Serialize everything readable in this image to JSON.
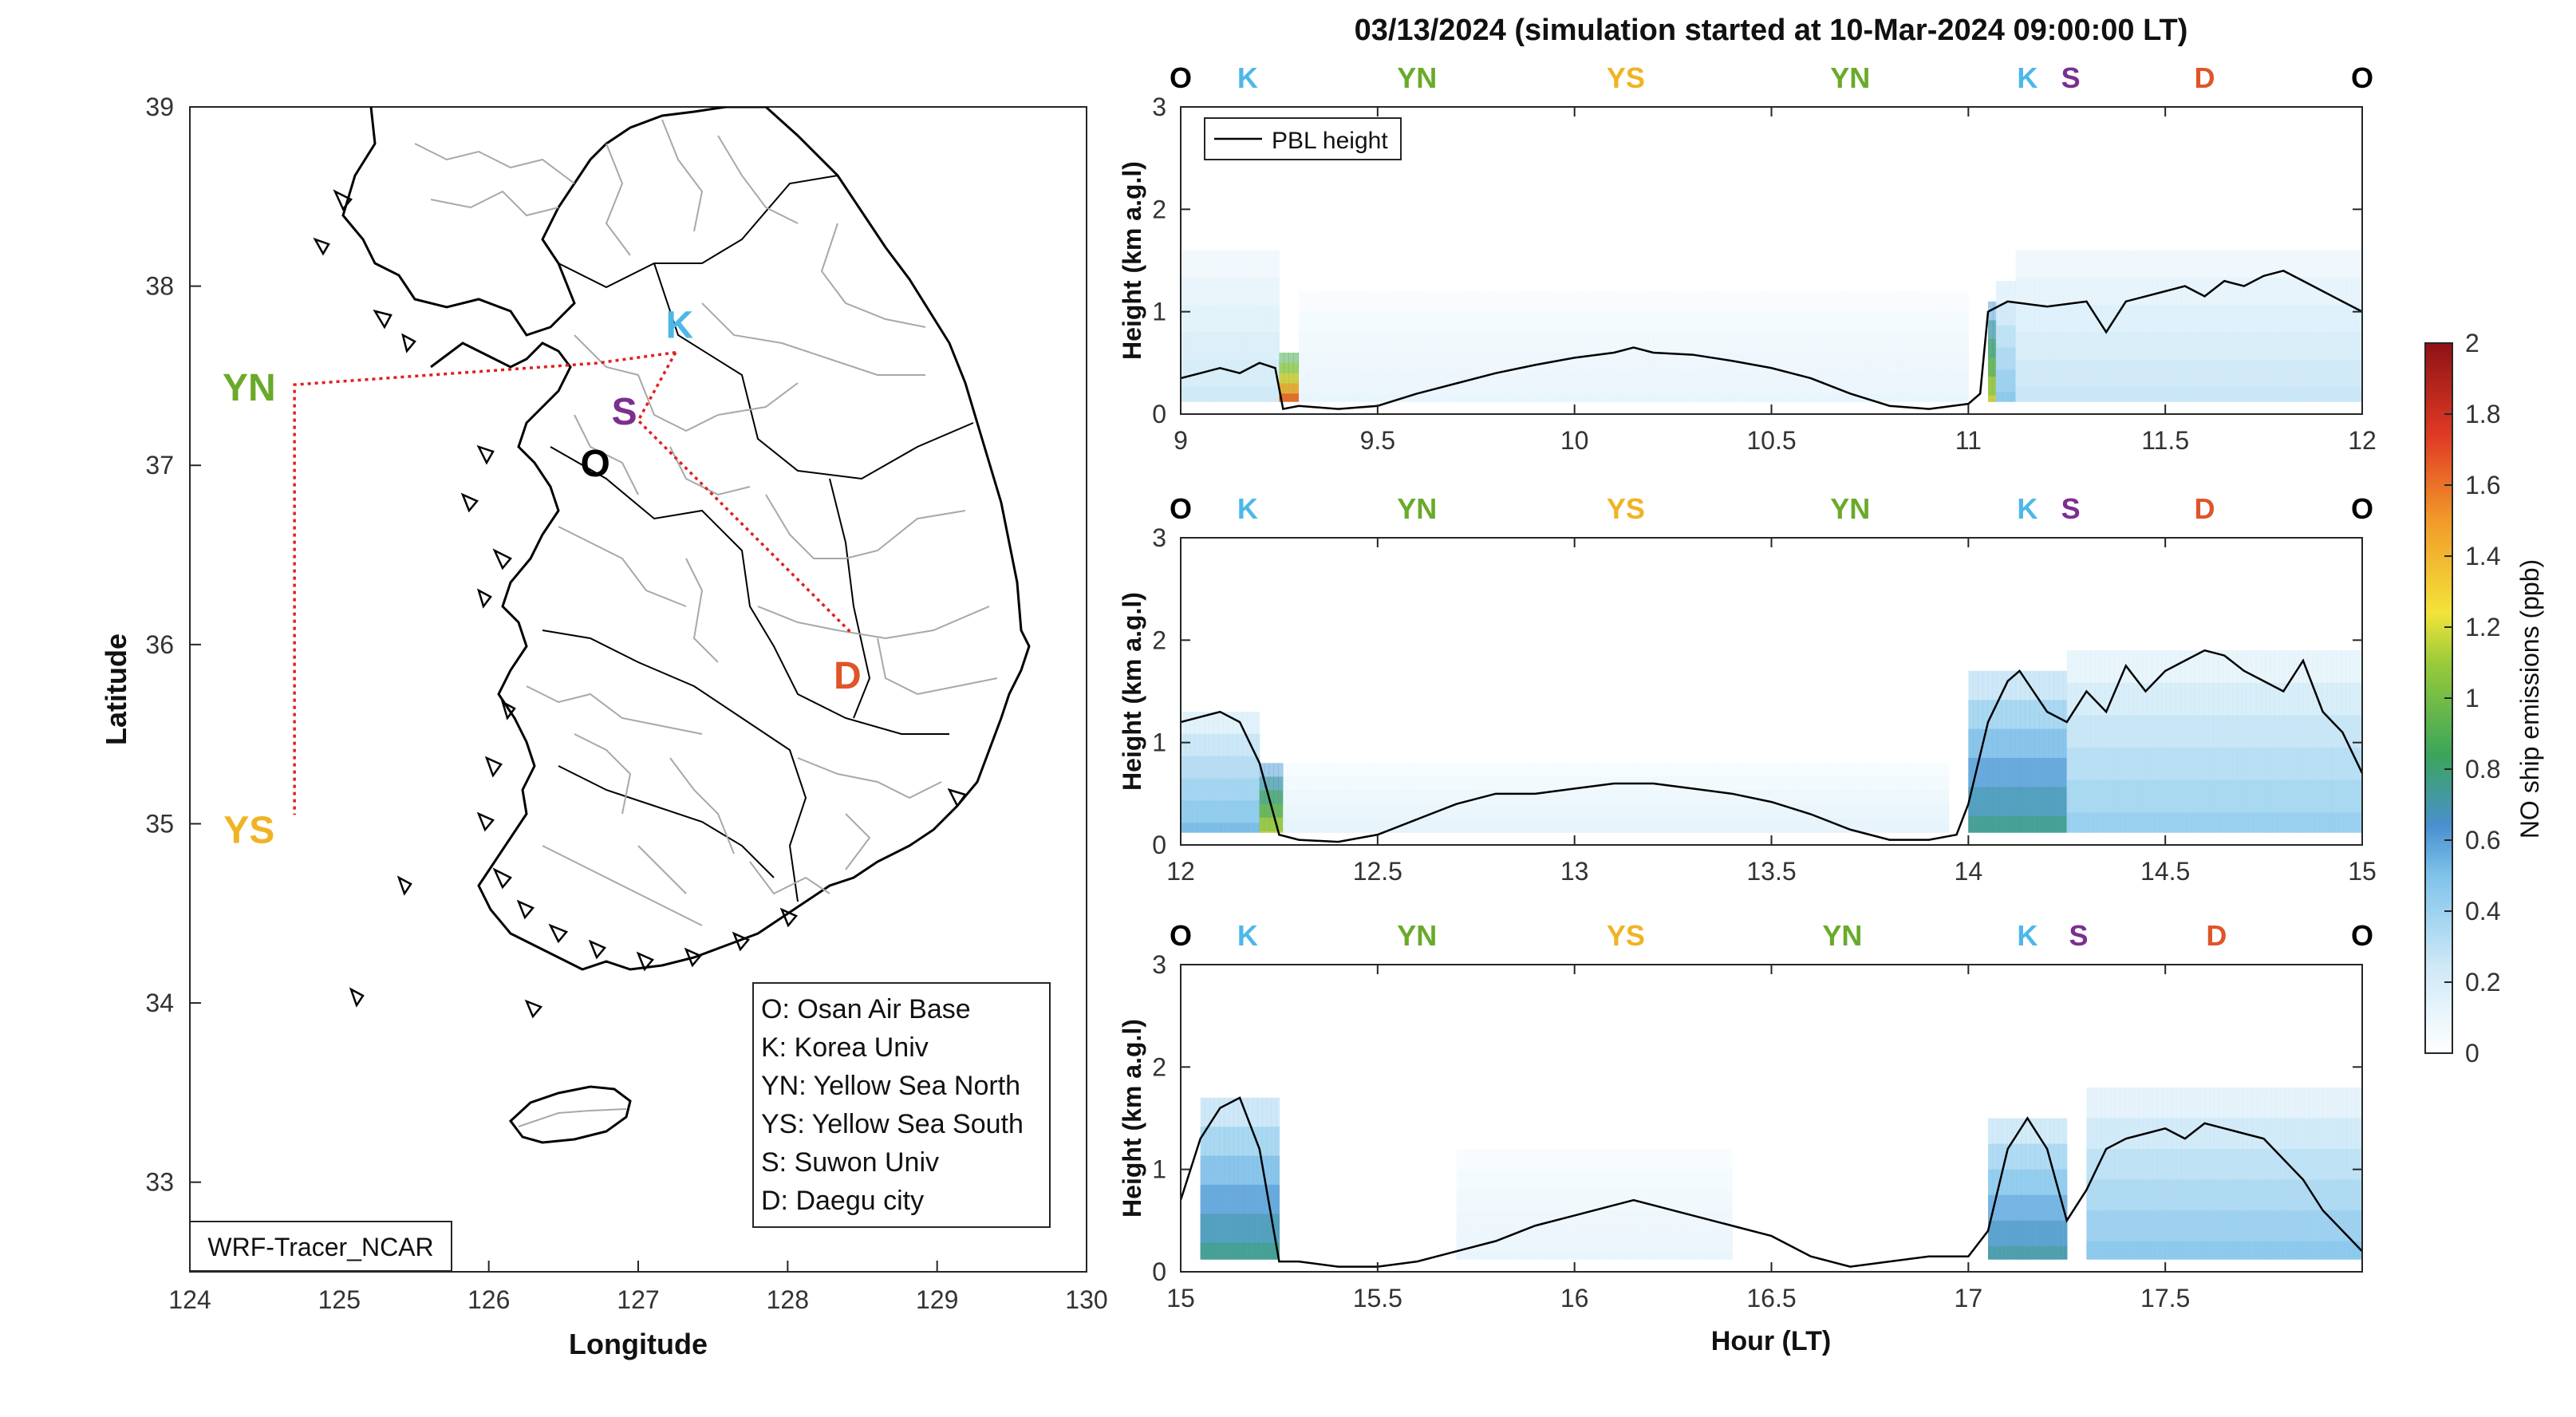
{
  "title": "03/13/2024 (simulation started at 10-Mar-2024 09:00:00 LT)",
  "map": {
    "xlabel": "Longitude",
    "ylabel": "Latitude",
    "xlim": [
      124,
      130
    ],
    "ylim": [
      32.5,
      39
    ],
    "xticks": [
      "124",
      "125",
      "126",
      "127",
      "128",
      "129",
      "130"
    ],
    "yticks": [
      "33",
      "34",
      "35",
      "36",
      "37",
      "38",
      "39"
    ],
    "model_label": "WRF-Tracer_NCAR",
    "sites": [
      {
        "code": "K",
        "lon": 127.17,
        "lat": 37.63,
        "color": "#4db8e8"
      },
      {
        "code": "S",
        "lon": 126.95,
        "lat": 37.3,
        "color": "#7b2f8e"
      },
      {
        "code": "O",
        "lon": 126.83,
        "lat": 37.09,
        "color": "#000000"
      },
      {
        "code": "YN",
        "lon": 124.45,
        "lat": 37.45,
        "color": "#6aaa2a"
      },
      {
        "code": "YS",
        "lon": 124.45,
        "lat": 35.0,
        "color": "#f0b323"
      },
      {
        "code": "D",
        "lon": 128.55,
        "lat": 35.87,
        "color": "#e0542a"
      }
    ],
    "route": [
      [
        127.25,
        37.63
      ],
      [
        126.72,
        37.57
      ],
      [
        124.7,
        37.45
      ],
      [
        124.7,
        35.05
      ]
    ],
    "route2": [
      [
        127.25,
        37.63
      ],
      [
        127.0,
        37.25
      ],
      [
        128.42,
        36.07
      ]
    ],
    "legend": [
      "O: Osan Air Base",
      "K: Korea Univ",
      "YN: Yellow Sea North",
      "YS: Yellow Sea South",
      "S: Suwon Univ",
      "D: Daegu city"
    ]
  },
  "chart_data": {
    "type": "heatmap",
    "title": "03/13/2024 (simulation started at 10-Mar-2024 09:00:00 LT)",
    "xlabel": "Hour (LT)",
    "ylabel": "Height (km a.g.l)",
    "colorbar": {
      "label": "NO ship emissions (ppb)",
      "range": [
        0,
        2
      ],
      "ticks": [
        "0",
        "0.2",
        "0.4",
        "0.6",
        "0.8",
        "1",
        "1.2",
        "1.4",
        "1.6",
        "1.8",
        "2"
      ]
    },
    "legend": [
      "PBL height"
    ],
    "site_labels_top": [
      "O",
      "K",
      "YN",
      "YS",
      "YN",
      "K",
      "S",
      "D",
      "O"
    ],
    "panels": [
      {
        "xlim": [
          9,
          12
        ],
        "ylim": [
          0,
          3
        ],
        "xticks": [
          "9",
          "9.5",
          "10",
          "10.5",
          "11",
          "11.5",
          "12"
        ],
        "yticks": [
          "0",
          "1",
          "2",
          "3"
        ],
        "site_x": [
          9.0,
          9.17,
          9.6,
          10.13,
          10.7,
          11.15,
          11.26,
          11.6,
          12.0
        ],
        "pbl": [
          [
            9.0,
            0.35
          ],
          [
            9.05,
            0.4
          ],
          [
            9.1,
            0.45
          ],
          [
            9.15,
            0.4
          ],
          [
            9.2,
            0.5
          ],
          [
            9.24,
            0.45
          ],
          [
            9.26,
            0.05
          ],
          [
            9.3,
            0.08
          ],
          [
            9.4,
            0.05
          ],
          [
            9.5,
            0.08
          ],
          [
            9.6,
            0.2
          ],
          [
            9.7,
            0.3
          ],
          [
            9.8,
            0.4
          ],
          [
            9.9,
            0.48
          ],
          [
            10.0,
            0.55
          ],
          [
            10.1,
            0.6
          ],
          [
            10.15,
            0.65
          ],
          [
            10.2,
            0.6
          ],
          [
            10.3,
            0.58
          ],
          [
            10.4,
            0.52
          ],
          [
            10.5,
            0.45
          ],
          [
            10.6,
            0.35
          ],
          [
            10.7,
            0.2
          ],
          [
            10.8,
            0.08
          ],
          [
            10.9,
            0.05
          ],
          [
            11.0,
            0.1
          ],
          [
            11.03,
            0.2
          ],
          [
            11.05,
            1.0
          ],
          [
            11.1,
            1.1
          ],
          [
            11.2,
            1.05
          ],
          [
            11.3,
            1.1
          ],
          [
            11.35,
            0.8
          ],
          [
            11.4,
            1.1
          ],
          [
            11.45,
            1.15
          ],
          [
            11.5,
            1.2
          ],
          [
            11.55,
            1.25
          ],
          [
            11.6,
            1.15
          ],
          [
            11.65,
            1.3
          ],
          [
            11.7,
            1.25
          ],
          [
            11.75,
            1.35
          ],
          [
            11.8,
            1.4
          ],
          [
            11.85,
            1.3
          ],
          [
            11.9,
            1.2
          ],
          [
            11.95,
            1.1
          ],
          [
            12.0,
            1.0
          ]
        ],
        "plumes": [
          [
            9.0,
            9.25,
            1.6,
            0.25
          ],
          [
            9.25,
            9.3,
            0.6,
            1.95
          ],
          [
            9.3,
            11.0,
            1.2,
            0.12
          ],
          [
            11.05,
            11.07,
            1.1,
            1.3
          ],
          [
            11.07,
            11.12,
            1.3,
            0.5
          ],
          [
            11.12,
            12.0,
            1.6,
            0.28
          ]
        ]
      },
      {
        "xlim": [
          12,
          15
        ],
        "ylim": [
          0,
          3
        ],
        "xticks": [
          "12",
          "12.5",
          "13",
          "13.5",
          "14",
          "14.5",
          "15"
        ],
        "yticks": [
          "0",
          "1",
          "2",
          "3"
        ],
        "site_x": [
          12.0,
          12.17,
          12.6,
          13.13,
          13.7,
          14.15,
          14.26,
          14.6,
          15.0
        ],
        "pbl": [
          [
            12.0,
            1.2
          ],
          [
            12.05,
            1.25
          ],
          [
            12.1,
            1.3
          ],
          [
            12.15,
            1.2
          ],
          [
            12.2,
            0.8
          ],
          [
            12.25,
            0.1
          ],
          [
            12.3,
            0.05
          ],
          [
            12.4,
            0.03
          ],
          [
            12.5,
            0.1
          ],
          [
            12.6,
            0.25
          ],
          [
            12.7,
            0.4
          ],
          [
            12.8,
            0.5
          ],
          [
            12.9,
            0.5
          ],
          [
            13.0,
            0.55
          ],
          [
            13.1,
            0.6
          ],
          [
            13.2,
            0.6
          ],
          [
            13.3,
            0.55
          ],
          [
            13.4,
            0.5
          ],
          [
            13.5,
            0.42
          ],
          [
            13.6,
            0.3
          ],
          [
            13.7,
            0.15
          ],
          [
            13.8,
            0.05
          ],
          [
            13.9,
            0.05
          ],
          [
            13.97,
            0.1
          ],
          [
            14.0,
            0.4
          ],
          [
            14.05,
            1.2
          ],
          [
            14.1,
            1.6
          ],
          [
            14.13,
            1.7
          ],
          [
            14.2,
            1.3
          ],
          [
            14.25,
            1.2
          ],
          [
            14.3,
            1.5
          ],
          [
            14.35,
            1.3
          ],
          [
            14.4,
            1.75
          ],
          [
            14.45,
            1.5
          ],
          [
            14.5,
            1.7
          ],
          [
            14.55,
            1.8
          ],
          [
            14.6,
            1.9
          ],
          [
            14.65,
            1.85
          ],
          [
            14.7,
            1.7
          ],
          [
            14.75,
            1.6
          ],
          [
            14.8,
            1.5
          ],
          [
            14.85,
            1.8
          ],
          [
            14.9,
            1.3
          ],
          [
            14.95,
            1.1
          ],
          [
            15.0,
            0.7
          ]
        ],
        "plumes": [
          [
            12.0,
            12.2,
            1.3,
            0.55
          ],
          [
            12.2,
            12.26,
            0.8,
            1.3
          ],
          [
            12.26,
            13.95,
            0.8,
            0.15
          ],
          [
            14.0,
            14.25,
            1.7,
            0.8
          ],
          [
            14.25,
            15.0,
            1.9,
            0.45
          ]
        ]
      },
      {
        "xlim": [
          15,
          18
        ],
        "ylim": [
          0,
          3
        ],
        "xticks": [
          "15",
          "15.5",
          "16",
          "16.5",
          "17",
          "17.5"
        ],
        "yticks": [
          "0",
          "1",
          "2",
          "3"
        ],
        "site_x": [
          15.0,
          15.17,
          15.6,
          16.13,
          16.68,
          17.15,
          17.28,
          17.63,
          18.0
        ],
        "pbl": [
          [
            15.0,
            0.7
          ],
          [
            15.05,
            1.3
          ],
          [
            15.1,
            1.6
          ],
          [
            15.15,
            1.7
          ],
          [
            15.2,
            1.2
          ],
          [
            15.25,
            0.1
          ],
          [
            15.3,
            0.1
          ],
          [
            15.4,
            0.05
          ],
          [
            15.5,
            0.05
          ],
          [
            15.6,
            0.1
          ],
          [
            15.7,
            0.2
          ],
          [
            15.8,
            0.3
          ],
          [
            15.9,
            0.45
          ],
          [
            16.0,
            0.55
          ],
          [
            16.1,
            0.65
          ],
          [
            16.15,
            0.7
          ],
          [
            16.2,
            0.65
          ],
          [
            16.3,
            0.55
          ],
          [
            16.4,
            0.45
          ],
          [
            16.5,
            0.35
          ],
          [
            16.6,
            0.15
          ],
          [
            16.7,
            0.05
          ],
          [
            16.8,
            0.1
          ],
          [
            16.9,
            0.15
          ],
          [
            17.0,
            0.15
          ],
          [
            17.05,
            0.4
          ],
          [
            17.1,
            1.2
          ],
          [
            17.15,
            1.5
          ],
          [
            17.2,
            1.2
          ],
          [
            17.25,
            0.5
          ],
          [
            17.3,
            0.8
          ],
          [
            17.35,
            1.2
          ],
          [
            17.4,
            1.3
          ],
          [
            17.45,
            1.35
          ],
          [
            17.5,
            1.4
          ],
          [
            17.55,
            1.3
          ],
          [
            17.6,
            1.45
          ],
          [
            17.65,
            1.4
          ],
          [
            17.7,
            1.35
          ],
          [
            17.75,
            1.3
          ],
          [
            17.8,
            1.1
          ],
          [
            17.85,
            0.9
          ],
          [
            17.9,
            0.6
          ],
          [
            17.95,
            0.4
          ],
          [
            18.0,
            0.2
          ]
        ],
        "plumes": [
          [
            15.05,
            15.25,
            1.7,
            0.8
          ],
          [
            15.7,
            16.4,
            1.2,
            0.12
          ],
          [
            17.05,
            17.25,
            1.5,
            0.75
          ],
          [
            17.3,
            18.0,
            1.8,
            0.5
          ]
        ]
      }
    ]
  }
}
